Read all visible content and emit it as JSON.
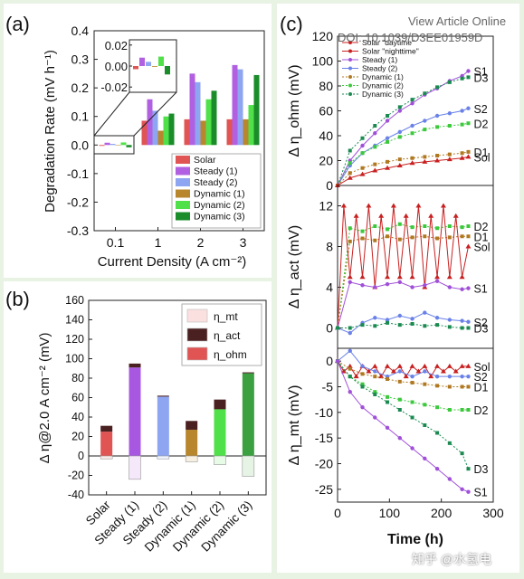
{
  "overlay": {
    "view_article": "View Article Online",
    "doi": "DOI: 10.1039/D3EE01959D",
    "watermark": "知乎 @水氢电"
  },
  "panel_labels": {
    "a": "(a)",
    "b": "(b)",
    "c": "(c)"
  },
  "colors": {
    "Solar": "#e05454",
    "Steady (1)": "#b060e0",
    "Steady (2)": "#8ea6f2",
    "Dynamic (1)": "#b8862c",
    "Dynamic (2)": "#50e04a",
    "Dynamic (3)": "#1a8c2a",
    "mt": "#fbe0e0",
    "act": "#4a2020",
    "ohm": "#e05454",
    "S1": "#a050d8",
    "S2": "#6a82e8",
    "D1": "#b07820",
    "D2": "#3cc83c",
    "D3": "#1a8a50",
    "Sol": "#c82020"
  },
  "chart_data": [
    {
      "id": "a",
      "type": "bar",
      "xlabel": "Current Density (A cm⁻²)",
      "ylabel": "Degradation Rate (mV h⁻¹)",
      "ylim": [
        -0.3,
        0.4
      ],
      "yticks": [
        "-0.3",
        "-0.2",
        "-0.1",
        "0.0",
        "0.1",
        "0.2",
        "0.3",
        "0.4"
      ],
      "categories": [
        "0.1",
        "1",
        "2",
        "3"
      ],
      "series": [
        {
          "name": "Solar",
          "values": [
            -0.003,
            0.085,
            0.09,
            0.09
          ]
        },
        {
          "name": "Steady (1)",
          "values": [
            0.008,
            0.16,
            0.25,
            0.28
          ]
        },
        {
          "name": "Steady (2)",
          "values": [
            0.004,
            0.12,
            0.22,
            0.265
          ]
        },
        {
          "name": "Dynamic (1)",
          "values": [
            0.0,
            0.05,
            0.085,
            0.09
          ]
        },
        {
          "name": "Dynamic (2)",
          "values": [
            0.009,
            0.1,
            0.16,
            0.14
          ]
        },
        {
          "name": "Dynamic (3)",
          "values": [
            -0.008,
            0.11,
            0.19,
            0.245
          ]
        }
      ],
      "inset": {
        "yticks": [
          "0.02",
          "0.00",
          "-0.02"
        ],
        "ylim": [
          -0.025,
          0.025
        ],
        "values": [
          -0.003,
          0.008,
          0.004,
          0.0,
          0.009,
          -0.008
        ]
      },
      "legend": [
        "Solar",
        "Steady (1)",
        "Steady (2)",
        "Dynamic (1)",
        "Dynamic (2)",
        "Dynamic (3)"
      ]
    },
    {
      "id": "b",
      "type": "bar",
      "ylabel": "Δ η@2.0 A cm⁻² (mV)",
      "ylim": [
        -40,
        160
      ],
      "yticks": [
        "-40",
        "-20",
        "0",
        "20",
        "40",
        "60",
        "80",
        "100",
        "120",
        "140",
        "160"
      ],
      "categories": [
        "Solar",
        "Steady (1)",
        "Steady (2)",
        "Dynamic (1)",
        "Dynamic (2)",
        "Dynamic (3)"
      ],
      "ohm": [
        25,
        91,
        61,
        27,
        48,
        85
      ],
      "act": [
        6,
        4,
        1,
        9,
        10,
        1
      ],
      "mt_neg": [
        -3,
        -24,
        -3,
        -6,
        -9,
        -21
      ],
      "legend": [
        "η_mt",
        "η_act",
        "η_ohm"
      ]
    },
    {
      "id": "c",
      "type": "line",
      "xlabel": "Time (h)",
      "xlim": [
        0,
        300
      ],
      "xticks": [
        "0",
        "100",
        "200",
        "300"
      ],
      "legend": [
        "Solar \"daytime\"",
        "Solar \"nighttime\"",
        "Steady (1)",
        "Steady (2)",
        "Dynamic (1)",
        "Dynamic (2)",
        "Dynamic (3)"
      ],
      "subplots": [
        {
          "ylabel": "Δ η_ohm (mV)",
          "ylim": [
            0,
            120
          ],
          "yticks": [
            "0",
            "20",
            "40",
            "60",
            "80",
            "100",
            "120"
          ],
          "series": [
            {
              "name": "S1",
              "x": [
                0,
                24,
                48,
                72,
                96,
                120,
                144,
                168,
                192,
                216,
                240,
                252
              ],
              "y": [
                0,
                20,
                32,
                42,
                52,
                60,
                66,
                73,
                78,
                84,
                88,
                92
              ]
            },
            {
              "name": "D3",
              "x": [
                0,
                24,
                48,
                72,
                96,
                120,
                144,
                168,
                192,
                216,
                240,
                252
              ],
              "y": [
                0,
                28,
                38,
                48,
                56,
                63,
                69,
                74,
                79,
                83,
                86,
                87
              ]
            },
            {
              "name": "S2",
              "x": [
                0,
                24,
                48,
                72,
                96,
                120,
                144,
                168,
                192,
                216,
                240,
                252
              ],
              "y": [
                0,
                16,
                26,
                32,
                38,
                43,
                48,
                52,
                56,
                58,
                60,
                62
              ]
            },
            {
              "name": "D2",
              "x": [
                0,
                24,
                48,
                72,
                96,
                120,
                144,
                168,
                192,
                216,
                240,
                252
              ],
              "y": [
                0,
                18,
                26,
                31,
                35,
                39,
                42,
                45,
                47,
                48,
                49,
                50
              ]
            },
            {
              "name": "D1",
              "x": [
                0,
                24,
                48,
                72,
                96,
                120,
                144,
                168,
                192,
                216,
                240,
                252
              ],
              "y": [
                0,
                10,
                14,
                17,
                19,
                21,
                22,
                23,
                24,
                25,
                26,
                27
              ]
            },
            {
              "name": "Sol",
              "x": [
                0,
                24,
                48,
                72,
                96,
                120,
                144,
                168,
                192,
                216,
                240,
                252
              ],
              "y": [
                0,
                6,
                9,
                12,
                14,
                16,
                18,
                19,
                20,
                21,
                22,
                23
              ]
            }
          ],
          "labels": [
            "S1",
            "D3",
            "S2",
            "D2",
            "D1",
            "Sol"
          ]
        },
        {
          "ylabel": "Δ η_act (mV)",
          "ylim": [
            -2,
            14
          ],
          "yticks": [
            "0",
            "4",
            "8",
            "12"
          ],
          "series": [
            {
              "name": "D2",
              "x": [
                0,
                24,
                48,
                72,
                96,
                120,
                144,
                168,
                192,
                216,
                240,
                252
              ],
              "y": [
                0,
                9.8,
                9.5,
                10,
                9.7,
                10.2,
                9.9,
                10,
                9.8,
                10,
                9.9,
                10
              ]
            },
            {
              "name": "D1",
              "x": [
                0,
                24,
                48,
                72,
                96,
                120,
                144,
                168,
                192,
                216,
                240,
                252
              ],
              "y": [
                0,
                8.5,
                8.8,
                8.6,
                9,
                8.7,
                8.9,
                9,
                8.8,
                8.9,
                9,
                9
              ]
            },
            {
              "name": "Sol",
              "x": [
                0,
                12,
                24,
                36,
                48,
                60,
                72,
                84,
                96,
                108,
                120,
                132,
                144,
                156,
                168,
                180,
                192,
                204,
                216,
                228,
                240,
                252
              ],
              "y": [
                0,
                12,
                5,
                11,
                5,
                12,
                4,
                11,
                5,
                12,
                5,
                11,
                5,
                12,
                4,
                11,
                5,
                12,
                5,
                11,
                5,
                8
              ]
            },
            {
              "name": "S1",
              "x": [
                0,
                24,
                48,
                72,
                96,
                120,
                144,
                168,
                192,
                216,
                240,
                252
              ],
              "y": [
                0,
                4.5,
                4.2,
                4,
                4.3,
                4.5,
                4,
                4.2,
                4.6,
                4,
                3.8,
                3.9
              ]
            },
            {
              "name": "S2",
              "x": [
                0,
                24,
                48,
                72,
                96,
                120,
                144,
                168,
                192,
                216,
                240,
                252
              ],
              "y": [
                0,
                -0.5,
                0.5,
                1,
                0.8,
                1.2,
                0.9,
                1.5,
                1,
                0.8,
                0.7,
                0.6
              ]
            },
            {
              "name": "D3",
              "x": [
                0,
                24,
                48,
                72,
                96,
                120,
                144,
                168,
                192,
                216,
                240,
                252
              ],
              "y": [
                0,
                0,
                0.3,
                0.2,
                0.5,
                0.3,
                0.4,
                0.2,
                0.3,
                0.1,
                0,
                0
              ]
            }
          ],
          "labels": [
            "D2",
            "D1",
            "Sol",
            "S1",
            "S2",
            "D3"
          ]
        },
        {
          "ylabel": "Δ η_mt (mV)",
          "ylim": [
            -27.5,
            2.5
          ],
          "yticks": [
            "0",
            "-5",
            "-10",
            "-15",
            "-20",
            "-25"
          ],
          "series": [
            {
              "name": "Sol",
              "x": [
                0,
                12,
                24,
                36,
                48,
                60,
                72,
                84,
                96,
                108,
                120,
                132,
                144,
                156,
                168,
                180,
                192,
                204,
                216,
                228,
                240,
                252
              ],
              "y": [
                0,
                -2,
                -1,
                -3,
                -1,
                -2,
                -1,
                -3,
                -1,
                -2,
                -1,
                -3,
                -1,
                -2,
                -1,
                -3,
                -1,
                -2,
                -1,
                -2,
                -1,
                -1
              ]
            },
            {
              "name": "S2",
              "x": [
                0,
                24,
                48,
                72,
                96,
                120,
                144,
                168,
                192,
                216,
                240,
                252
              ],
              "y": [
                0,
                2,
                -1,
                -2,
                -3,
                -2,
                -3,
                -2,
                -3,
                -3,
                -3,
                -3
              ]
            },
            {
              "name": "D1",
              "x": [
                0,
                24,
                48,
                72,
                96,
                120,
                144,
                168,
                192,
                216,
                240,
                252
              ],
              "y": [
                0,
                -1.5,
                -2.5,
                -3,
                -3.5,
                -4,
                -4.2,
                -4.5,
                -4.8,
                -5,
                -5,
                -5
              ]
            },
            {
              "name": "D2",
              "x": [
                0,
                24,
                48,
                72,
                96,
                120,
                144,
                168,
                192,
                216,
                240,
                252
              ],
              "y": [
                0,
                -3,
                -4.5,
                -6,
                -7,
                -7.5,
                -8,
                -8.5,
                -9,
                -9.5,
                -9.5,
                -9.5
              ]
            },
            {
              "name": "D3",
              "x": [
                0,
                24,
                48,
                72,
                96,
                120,
                144,
                168,
                192,
                216,
                240,
                252
              ],
              "y": [
                0,
                -3,
                -5,
                -6.5,
                -8,
                -9.5,
                -11,
                -12.5,
                -14,
                -16,
                -18,
                -21
              ]
            },
            {
              "name": "S1",
              "x": [
                0,
                24,
                48,
                72,
                96,
                120,
                144,
                168,
                192,
                216,
                240,
                252
              ],
              "y": [
                0,
                -6,
                -9,
                -11,
                -13,
                -15,
                -17,
                -19,
                -21,
                -23,
                -25,
                -25.5
              ]
            }
          ],
          "labels": [
            "Sol",
            "S2",
            "D1",
            "D2",
            "D3",
            "S1"
          ]
        }
      ]
    }
  ]
}
